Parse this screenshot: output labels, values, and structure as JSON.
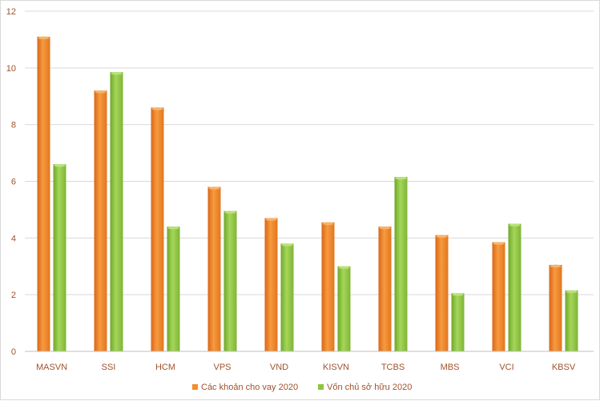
{
  "chart_data": {
    "type": "bar",
    "title": "",
    "xlabel": "",
    "ylabel": "",
    "ylim": [
      0,
      12
    ],
    "yticks": [
      0,
      2,
      4,
      6,
      8,
      10,
      12
    ],
    "grid": true,
    "legend_position": "bottom",
    "categories": [
      "MASVN",
      "SSI",
      "HCM",
      "VPS",
      "VND",
      "KISVN",
      "TCBS",
      "MBS",
      "VCI",
      "KBSV"
    ],
    "series": [
      {
        "name": "Các khoản cho vay 2020",
        "color": "#f28e2b",
        "values": [
          11.1,
          9.2,
          8.6,
          5.8,
          4.7,
          4.55,
          4.4,
          4.1,
          3.85,
          3.05
        ]
      },
      {
        "name": "Vốn chủ sở hữu 2020",
        "color": "#8cc63e",
        "values": [
          6.6,
          9.85,
          4.4,
          4.95,
          3.8,
          3.0,
          6.15,
          2.05,
          4.5,
          2.15
        ]
      }
    ]
  }
}
